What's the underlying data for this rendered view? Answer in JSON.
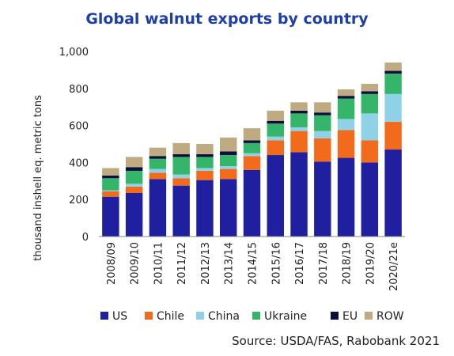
{
  "chart_data": {
    "type": "bar",
    "stacked": true,
    "title": "Global walnut exports by country",
    "ylabel": "thousand inshell eq. metric tons",
    "ylim": [
      0,
      1000
    ],
    "yticks": [
      "0",
      "200",
      "400",
      "600",
      "800",
      "1,000"
    ],
    "categories": [
      "2008/09",
      "2009/10",
      "2010/11",
      "2011/12",
      "2012/13",
      "2013/14",
      "2014/15",
      "2015/16",
      "2016/17",
      "2017/18",
      "2018/19",
      "2019/20",
      "2020/21e"
    ],
    "series": [
      {
        "name": "US",
        "color": "#1f1fa0",
        "values": [
          215,
          235,
          310,
          275,
          305,
          310,
          360,
          440,
          455,
          405,
          425,
          400,
          470
        ]
      },
      {
        "name": "Chile",
        "color": "#f26a1b",
        "values": [
          30,
          35,
          35,
          40,
          50,
          55,
          75,
          80,
          115,
          125,
          150,
          120,
          150
        ]
      },
      {
        "name": "China",
        "color": "#8fd2e8",
        "values": [
          5,
          15,
          20,
          20,
          15,
          15,
          15,
          20,
          20,
          40,
          60,
          145,
          150
        ]
      },
      {
        "name": "Ukraine",
        "color": "#35b56a",
        "values": [
          65,
          70,
          55,
          95,
          60,
          60,
          55,
          70,
          75,
          85,
          110,
          105,
          110
        ]
      },
      {
        "name": "EU",
        "color": "#0a0f3c",
        "values": [
          15,
          20,
          15,
          15,
          15,
          20,
          15,
          15,
          15,
          15,
          15,
          15,
          15
        ]
      },
      {
        "name": "ROW",
        "color": "#bfaa82",
        "values": [
          40,
          55,
          45,
          60,
          55,
          75,
          65,
          55,
          45,
          55,
          35,
          40,
          45
        ]
      }
    ],
    "legend_position": "bottom",
    "grid": false,
    "source": "Source: USDA/FAS, Rabobank 2021"
  }
}
